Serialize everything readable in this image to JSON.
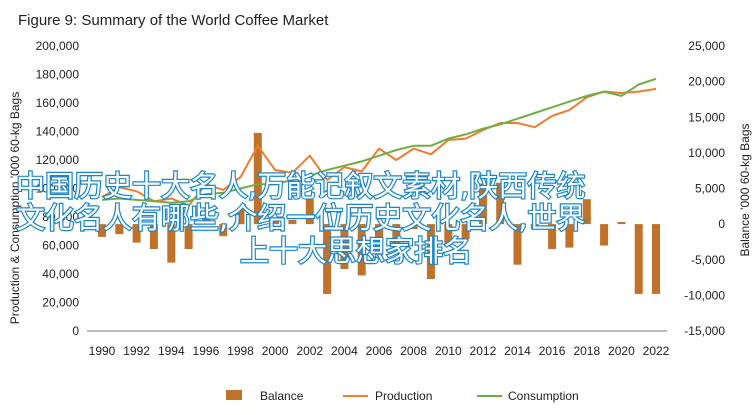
{
  "chart_data": {
    "type": "bar+line",
    "title": "Figure 9: Summary of the World Coffee Market",
    "x": [
      1990,
      1991,
      1992,
      1993,
      1994,
      1995,
      1996,
      1997,
      1998,
      1999,
      2000,
      2001,
      2002,
      2003,
      2004,
      2005,
      2006,
      2007,
      2008,
      2009,
      2010,
      2011,
      2012,
      2013,
      2014,
      2015,
      2016,
      2017,
      2018,
      2019,
      2020,
      2021,
      2022
    ],
    "x_ticks": [
      "1990",
      "1992",
      "1994",
      "1996",
      "1998",
      "2000",
      "2002",
      "2004",
      "2006",
      "2008",
      "2010",
      "2012",
      "2014",
      "2016",
      "2018",
      "2020",
      "2022"
    ],
    "ylabel": "Production & Consumption '000 60-kg Bags",
    "y2label": "Balance '000 60-kg Bags",
    "ylim": [
      0,
      200000
    ],
    "y2lim": [
      -15000,
      25000
    ],
    "y_ticks": [
      "0",
      "20,000",
      "40,000",
      "60,000",
      "80,000",
      "100,000",
      "120,000",
      "140,000",
      "160,000",
      "180,000",
      "200,000"
    ],
    "y2_ticks": [
      "-15,000",
      "-10,000",
      "-5,000",
      "0",
      "5,000",
      "10,000",
      "15,000",
      "20,000",
      "25,000"
    ],
    "grid": false,
    "legend": "bottom",
    "series": [
      {
        "name": "Balance",
        "axis": "right",
        "kind": "bar",
        "color": "#c0712a",
        "values": [
          -1800,
          -1400,
          -2600,
          -3500,
          -5400,
          -3500,
          1000,
          -1700,
          2100,
          12800,
          900,
          600,
          3500,
          -9800,
          -6300,
          -7200,
          -4400,
          -2800,
          -700,
          -7700,
          -2700,
          -2100,
          5700,
          5800,
          -5700,
          -700,
          -3500,
          -3300,
          3500,
          -3000,
          300,
          -9800,
          -9800
        ]
      },
      {
        "name": "Production",
        "axis": "left",
        "kind": "line",
        "color": "#ed7d31",
        "values": [
          94000,
          101000,
          98000,
          91000,
          93000,
          88000,
          103000,
          99000,
          108000,
          130000,
          113000,
          111000,
          123000,
          106000,
          115000,
          112000,
          128000,
          120000,
          128000,
          124000,
          134000,
          135000,
          141000,
          146000,
          146000,
          143000,
          151000,
          155000,
          164000,
          168000,
          167000,
          168000,
          170000
        ]
      },
      {
        "name": "Consumption",
        "axis": "left",
        "kind": "line",
        "color": "#70ad47",
        "values": [
          92000,
          93000,
          92000,
          91000,
          90000,
          91000,
          96000,
          97000,
          100000,
          103000,
          103000,
          106000,
          109000,
          113000,
          116000,
          119000,
          123000,
          127000,
          130000,
          130000,
          135000,
          138000,
          142000,
          145000,
          149000,
          153000,
          157000,
          161000,
          165000,
          168000,
          165000,
          173000,
          177000
        ]
      }
    ]
  },
  "overlay_text": {
    "line1": "中国历史十大名人,万能记叙文素材,陕西传统",
    "line2": "文化名人有哪些,介绍一位历史文化名人,世界",
    "line3": "上十大思想家排名"
  }
}
